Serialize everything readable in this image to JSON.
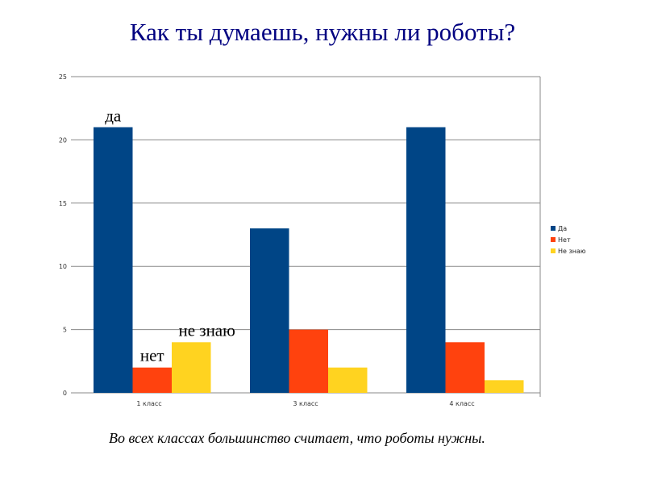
{
  "title": "Как ты думаешь, нужны ли роботы?",
  "caption": "Во всех классах большинство считает, что роботы нужны.",
  "chart_data": {
    "type": "bar",
    "categories": [
      "1 класс",
      "3 класс",
      "4 класс"
    ],
    "series": [
      {
        "name": "Да",
        "values": [
          21,
          13,
          21
        ],
        "color": "#004586"
      },
      {
        "name": "Нет",
        "values": [
          2,
          5,
          4
        ],
        "color": "#ff420e"
      },
      {
        "name": "Не знаю",
        "values": [
          4,
          2,
          1
        ],
        "color": "#ffd320"
      }
    ],
    "ylim": [
      0,
      25
    ],
    "yticks": [
      0,
      5,
      10,
      15,
      20,
      25
    ],
    "grid": true,
    "legend": "right",
    "annotations": [
      "да",
      "нет",
      "не знаю"
    ]
  }
}
